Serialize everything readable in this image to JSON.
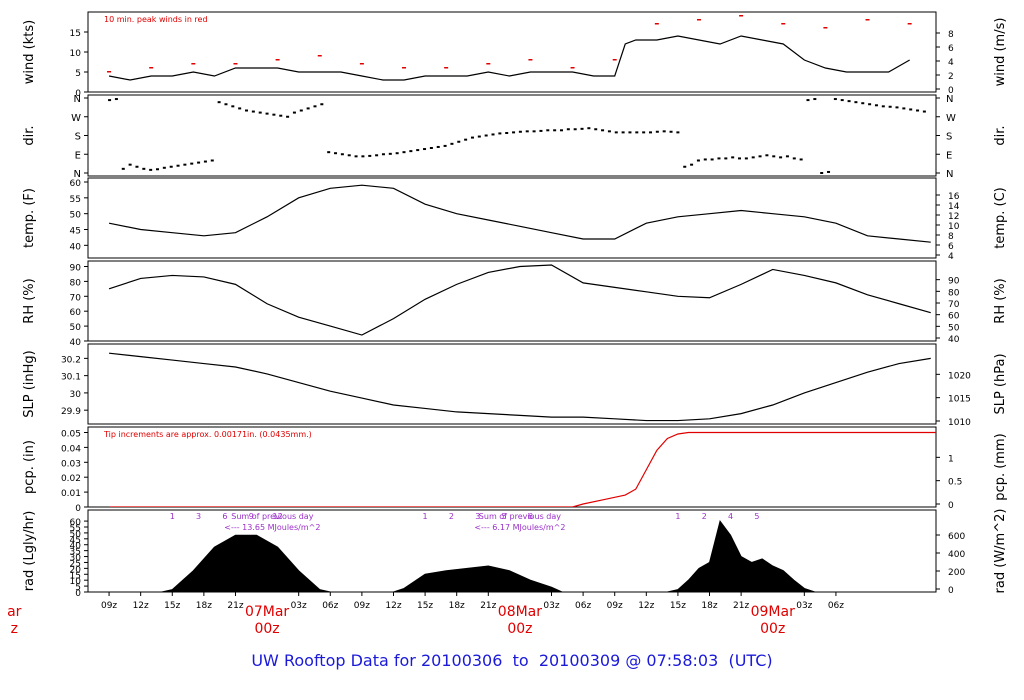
{
  "footer_title": "UW Rooftop Data for 20100306  to  20100309 @ 07:58:03  (UTC)",
  "colors": {
    "data": "#000000",
    "peak": "#e00000",
    "note": "#e00000",
    "solar": "#9b30c8",
    "title": "#1a1ad8",
    "date": "#e00000"
  },
  "chart_data": [
    {
      "type": "line",
      "id": "wind",
      "ylabel": "wind (kts)",
      "ylabel_right": "wind (m/s)",
      "ylim": [
        0,
        19
      ],
      "yticks": [
        0,
        5,
        10,
        15
      ],
      "yticks_right": [
        0,
        2,
        4,
        6,
        8
      ],
      "annotation": "10 min. peak winds in red",
      "series": [
        {
          "name": "10 min. peak winds in red",
          "x": [
            0,
            4,
            8,
            12,
            16,
            20,
            24,
            28,
            32,
            36,
            40,
            44,
            48,
            52,
            56,
            60,
            64,
            68,
            72,
            76
          ],
          "y": [
            5,
            6,
            7,
            7,
            8,
            9,
            7,
            6,
            6,
            7,
            8,
            6,
            8,
            17,
            18,
            19,
            17,
            16,
            18,
            17
          ]
        }
      ],
      "x": [
        0,
        2,
        4,
        6,
        8,
        10,
        12,
        14,
        16,
        18,
        20,
        22,
        24,
        26,
        28,
        30,
        32,
        34,
        36,
        38,
        40,
        42,
        44,
        46,
        48,
        49,
        50,
        52,
        54,
        56,
        58,
        60,
        62,
        64,
        66,
        68,
        70,
        72,
        74,
        76
      ],
      "values": [
        4,
        3,
        4,
        4,
        5,
        4,
        6,
        6,
        6,
        5,
        5,
        5,
        4,
        3,
        3,
        4,
        4,
        4,
        5,
        4,
        5,
        5,
        5,
        4,
        4,
        12,
        13,
        13,
        14,
        13,
        12,
        14,
        13,
        12,
        8,
        6,
        5,
        5,
        5,
        8
      ]
    },
    {
      "type": "scatter",
      "id": "dir",
      "ylabel": "dir.",
      "ylabel_right": "dir.",
      "yticks": [
        "N",
        "E",
        "S",
        "W",
        "N"
      ],
      "x": [
        0,
        1,
        2,
        3,
        4,
        5,
        6,
        7,
        8,
        9,
        10,
        11,
        12,
        13,
        14,
        15,
        16,
        17,
        18,
        19,
        20,
        21,
        22,
        23,
        24,
        25,
        26,
        27,
        28,
        29,
        30,
        31,
        32,
        33,
        34,
        35,
        36,
        37,
        38,
        39,
        40,
        41,
        42,
        43,
        44,
        45,
        46,
        47,
        48,
        49,
        50,
        51,
        52,
        53,
        54,
        55,
        56,
        57,
        58,
        59,
        60,
        61,
        62,
        63,
        64,
        65,
        66,
        67,
        68,
        69,
        70,
        71,
        72,
        73,
        74,
        75,
        76,
        77,
        78,
        79,
        80,
        81,
        82,
        83,
        84,
        85,
        86,
        87,
        88,
        89,
        90,
        91,
        92,
        93,
        94,
        95,
        96,
        97,
        98,
        99,
        100,
        101,
        102,
        103,
        104,
        105,
        106,
        107,
        108,
        109,
        110,
        111,
        112,
        113,
        114,
        115,
        116,
        117,
        118,
        119
      ],
      "values": [
        350,
        355,
        20,
        40,
        30,
        20,
        15,
        18,
        25,
        30,
        35,
        40,
        45,
        50,
        55,
        60,
        340,
        330,
        320,
        310,
        300,
        295,
        290,
        285,
        280,
        275,
        270,
        290,
        300,
        310,
        320,
        330,
        100,
        95,
        90,
        85,
        80,
        80,
        82,
        85,
        90,
        92,
        95,
        100,
        105,
        110,
        115,
        120,
        125,
        130,
        140,
        150,
        160,
        170,
        175,
        180,
        185,
        190,
        192,
        195,
        198,
        200,
        200,
        202,
        205,
        205,
        205,
        210,
        210,
        212,
        215,
        210,
        205,
        200,
        195,
        195,
        195,
        195,
        195,
        195,
        198,
        200,
        198,
        195,
        30,
        40,
        60,
        65,
        65,
        70,
        70,
        75,
        70,
        70,
        75,
        80,
        85,
        80,
        75,
        80,
        70,
        65,
        350,
        355,
        0,
        5,
        355,
        350,
        345,
        340,
        335,
        330,
        325,
        320,
        318,
        315,
        310,
        305,
        300,
        295
      ]
    },
    {
      "type": "line",
      "id": "temp",
      "ylabel": "temp. (F)",
      "ylabel_right": "temp. (C)",
      "ylim": [
        36,
        60
      ],
      "yticks": [
        40,
        45,
        50,
        55,
        60
      ],
      "yticks_right": [
        4,
        6,
        8,
        10,
        12,
        14,
        16
      ],
      "x": [
        0,
        3,
        6,
        9,
        12,
        15,
        18,
        21,
        24,
        27,
        30,
        33,
        36,
        39,
        42,
        45,
        48,
        51,
        54,
        57,
        60,
        63,
        66,
        69,
        72,
        75,
        78
      ],
      "values": [
        47,
        45,
        44,
        43,
        44,
        49,
        55,
        58,
        59,
        58,
        53,
        50,
        48,
        46,
        44,
        42,
        42,
        47,
        49,
        50,
        51,
        50,
        49,
        47,
        43,
        42,
        41
      ]
    },
    {
      "type": "line",
      "id": "rh",
      "ylabel": "RH (%)",
      "ylabel_right": "RH (%)",
      "ylim": [
        40,
        91
      ],
      "yticks": [
        40,
        50,
        60,
        70,
        80,
        90
      ],
      "yticks_right": [
        40,
        50,
        60,
        70,
        80,
        90
      ],
      "x": [
        0,
        3,
        6,
        9,
        12,
        15,
        18,
        21,
        24,
        27,
        30,
        33,
        36,
        39,
        42,
        45,
        48,
        51,
        54,
        57,
        60,
        63,
        66,
        69,
        72,
        75,
        78
      ],
      "values": [
        75,
        82,
        84,
        83,
        78,
        65,
        56,
        50,
        44,
        55,
        68,
        78,
        86,
        90,
        91,
        79,
        76,
        73,
        70,
        69,
        78,
        88,
        84,
        79,
        71,
        65,
        59
      ]
    },
    {
      "type": "line",
      "id": "slp",
      "ylabel": "SLP (inHg)",
      "ylabel_right": "SLP (hPa)",
      "ylim": [
        29.82,
        30.26
      ],
      "yticks": [
        29.9,
        30.0,
        30.1,
        30.2
      ],
      "yticks_right": [
        1010,
        1015,
        1020
      ],
      "x": [
        0,
        3,
        6,
        9,
        12,
        15,
        18,
        21,
        24,
        27,
        30,
        33,
        36,
        39,
        42,
        45,
        48,
        51,
        54,
        57,
        60,
        63,
        66,
        69,
        72,
        75,
        78
      ],
      "values": [
        30.23,
        30.21,
        30.19,
        30.17,
        30.15,
        30.11,
        30.06,
        30.01,
        29.97,
        29.93,
        29.91,
        29.89,
        29.88,
        29.87,
        29.86,
        29.86,
        29.85,
        29.84,
        29.84,
        29.85,
        29.88,
        29.93,
        30.0,
        30.06,
        30.12,
        30.17,
        30.2
      ]
    },
    {
      "type": "line",
      "id": "pcp",
      "ylabel": "pcp. (in)",
      "ylabel_right": "pcp. (mm)",
      "ylim": [
        0,
        0.051
      ],
      "yticks": [
        0.0,
        0.01,
        0.02,
        0.03,
        0.04,
        0.05
      ],
      "yticks_right": [
        0,
        0.5,
        1
      ],
      "annotation": "Tip increments are approx. 0.00171in. (0.0435mm.)",
      "x": [
        0,
        44,
        45,
        47,
        49,
        50,
        51,
        52,
        53,
        54,
        55,
        56,
        80
      ],
      "values": [
        0,
        0,
        0.002,
        0.005,
        0.008,
        0.012,
        0.025,
        0.038,
        0.046,
        0.049,
        0.05,
        0.05,
        0.05
      ]
    },
    {
      "type": "area",
      "id": "rad",
      "ylabel": "rad (Lgly/hr)",
      "ylabel_right": "rad (W/m^2)",
      "ylim": [
        0,
        66
      ],
      "yticks": [
        0,
        5,
        10,
        15,
        20,
        25,
        30,
        35,
        40,
        45,
        50,
        55,
        60
      ],
      "yticks_right": [
        0,
        200,
        400,
        600
      ],
      "x": [
        0,
        5,
        6,
        8,
        10,
        12,
        14,
        16,
        18,
        20,
        21,
        25,
        27,
        28,
        30,
        32,
        34,
        36,
        38,
        40,
        42,
        43,
        45,
        48,
        53,
        54,
        55,
        56,
        57,
        58,
        59,
        60,
        61,
        62,
        63,
        64,
        65,
        66,
        67,
        68,
        80
      ],
      "values": [
        0,
        0,
        2,
        18,
        38,
        48,
        48,
        38,
        18,
        2,
        0,
        0,
        0,
        3,
        15,
        18,
        20,
        22,
        18,
        10,
        4,
        0,
        0,
        0,
        0,
        2,
        10,
        20,
        25,
        60,
        48,
        30,
        25,
        28,
        22,
        18,
        10,
        3,
        0,
        0,
        0
      ],
      "annotations": [
        {
          "lines": [
            "Sum of previous day",
            "<--- 13.65 MJoules/m^2"
          ]
        },
        {
          "lines": [
            "Sum of previous day",
            "<--- 6.17 MJoules/m^2"
          ]
        }
      ],
      "hour_marks": [
        {
          "at": 6,
          "labels": [
            "1",
            "3",
            "6",
            "9",
            "12"
          ]
        },
        {
          "at": 30,
          "labels": [
            "1",
            "2",
            "3",
            "5",
            "6"
          ]
        },
        {
          "at": 54,
          "labels": [
            "1",
            "2",
            "4",
            "5"
          ]
        }
      ]
    }
  ],
  "x_axis": {
    "tick_labels": [
      "09z",
      "12z",
      "15z",
      "18z",
      "21z",
      "03z",
      "06z",
      "09z",
      "12z",
      "15z",
      "18z",
      "21z",
      "03z",
      "06z",
      "09z",
      "12z",
      "15z",
      "18z",
      "21z",
      "03z",
      "06z"
    ],
    "tick_hours": [
      0,
      3,
      6,
      9,
      12,
      18,
      21,
      24,
      27,
      30,
      33,
      36,
      42,
      45,
      48,
      51,
      54,
      57,
      60,
      66,
      69
    ],
    "date_labels": [
      {
        "date": "ar",
        "time": "z",
        "at": -9
      },
      {
        "date": "07Mar",
        "time": "00z",
        "at": 15
      },
      {
        "date": "08Mar",
        "time": "00z",
        "at": 39
      },
      {
        "date": "09Mar",
        "time": "00z",
        "at": 63
      }
    ]
  }
}
